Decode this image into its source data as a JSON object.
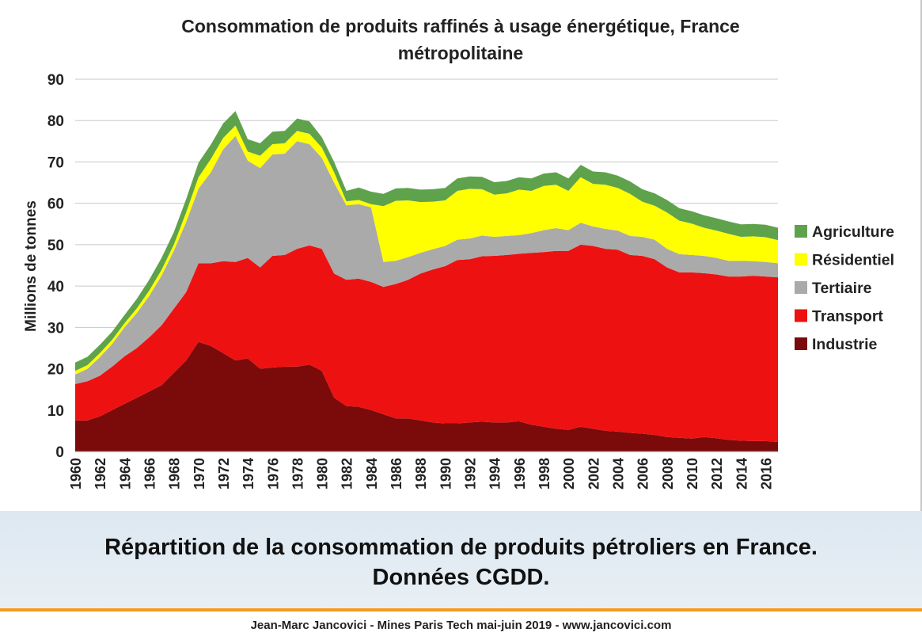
{
  "caption": {
    "line1": "Répartition de la consommation de produits pétroliers en France.",
    "line2": "Données CGDD."
  },
  "footer": {
    "text": "Jean-Marc Jancovici - Mines Paris Tech mai-juin 2019 - www.jancovici.com"
  },
  "chart_data": {
    "type": "area",
    "stacked": true,
    "title": "Consommation de produits raffinés à usage énergétique, France métropolitaine",
    "title_lines": [
      "Consommation de produits raffinés à usage énergétique, France",
      "métropolitaine"
    ],
    "xlabel": "",
    "ylabel": "Millions de tonnes",
    "xlim": [
      1960,
      2017
    ],
    "ylim": [
      0,
      90
    ],
    "yticks": [
      0,
      10,
      20,
      30,
      40,
      50,
      60,
      70,
      80,
      90
    ],
    "xtick_labels": [
      "1960",
      "1962",
      "1964",
      "1966",
      "1968",
      "1970",
      "1972",
      "1974",
      "1976",
      "1978",
      "1980",
      "1982",
      "1984",
      "1986",
      "1988",
      "1990",
      "1992",
      "1994",
      "1996",
      "1998",
      "2000",
      "2002",
      "2004",
      "2006",
      "2008",
      "2010",
      "2012",
      "2014",
      "2016"
    ],
    "grid": "horizontal",
    "legend_position": "right",
    "x": [
      1960,
      1961,
      1962,
      1963,
      1964,
      1965,
      1966,
      1967,
      1968,
      1969,
      1970,
      1971,
      1972,
      1973,
      1974,
      1975,
      1976,
      1977,
      1978,
      1979,
      1980,
      1981,
      1982,
      1983,
      1984,
      1985,
      1986,
      1987,
      1988,
      1989,
      1990,
      1991,
      1992,
      1993,
      1994,
      1995,
      1996,
      1997,
      1998,
      1999,
      2000,
      2001,
      2002,
      2003,
      2004,
      2005,
      2006,
      2007,
      2008,
      2009,
      2010,
      2011,
      2012,
      2013,
      2014,
      2015,
      2016,
      2017
    ],
    "series": [
      {
        "name": "Industrie",
        "color": "#7b0a0a",
        "values": [
          7.5,
          7.5,
          8.5,
          10,
          11.5,
          13,
          14.5,
          16,
          19,
          22,
          26.5,
          25.5,
          23.8,
          22,
          22.5,
          20,
          20.3,
          20.5,
          20.5,
          21,
          19.5,
          13,
          11,
          10.8,
          10,
          9,
          8,
          8,
          7.5,
          7,
          6.8,
          6.8,
          7,
          7.2,
          7,
          7,
          7.3,
          6.5,
          6,
          5.5,
          5.2,
          6,
          5.5,
          5,
          4.8,
          4.5,
          4.3,
          4,
          3.5,
          3.3,
          3.1,
          3.5,
          3.2,
          2.8,
          2.6,
          2.5,
          2.5,
          2.3
        ]
      },
      {
        "name": "Transport",
        "color": "#ee1111",
        "values": [
          8.8,
          9.5,
          9.8,
          10.5,
          11.5,
          12,
          13.1,
          14.5,
          15.5,
          16.5,
          19,
          20,
          22.2,
          23.8,
          24.3,
          24.5,
          27,
          27,
          28.5,
          28.8,
          29.5,
          30,
          30.5,
          31,
          31,
          30.8,
          32.5,
          33.5,
          35.5,
          37,
          38,
          39.5,
          39.5,
          40,
          40.3,
          40.5,
          40.5,
          41.5,
          42.2,
          43,
          43.3,
          44,
          44.2,
          44,
          44,
          43,
          43,
          42.5,
          41,
          40,
          40.2,
          39.6,
          39.6,
          39.5,
          39.7,
          40,
          39.8,
          39.8
        ]
      },
      {
        "name": "Tertiaire",
        "color": "#aaaaaa",
        "values": [
          2.3,
          3,
          4.5,
          5.5,
          7,
          8.5,
          10,
          12,
          14,
          17,
          18,
          22,
          27,
          30.5,
          23.5,
          24,
          24.5,
          24.5,
          26,
          24.5,
          22,
          22,
          18,
          18,
          18,
          6,
          5.6,
          5.5,
          5,
          4.9,
          4.9,
          4.9,
          5,
          5,
          4.6,
          4.6,
          4.5,
          4.8,
          5.3,
          5.5,
          5,
          5.3,
          4.7,
          4.8,
          4.6,
          4.6,
          4.6,
          4.7,
          4.5,
          4.4,
          4.2,
          4.2,
          4,
          3.8,
          3.8,
          3.5,
          3.5,
          3.4
        ]
      },
      {
        "name": "Résidentiel",
        "color": "#ffff00",
        "values": [
          0.9,
          0.9,
          1,
          1,
          1,
          1.1,
          1.3,
          1.4,
          1.5,
          2.3,
          2.8,
          3.2,
          2.8,
          2.5,
          2.2,
          3,
          2.5,
          2.5,
          2.5,
          2.5,
          2.5,
          2.5,
          1,
          1,
          0.8,
          13.5,
          14.5,
          13.7,
          12.3,
          11.5,
          11,
          11.8,
          12,
          11.2,
          10.2,
          10.3,
          11,
          10.2,
          10.7,
          10.5,
          9.5,
          11,
          10.3,
          10.7,
          10.3,
          10.2,
          8.5,
          8.2,
          8.8,
          8.1,
          7.6,
          6.8,
          6.6,
          6.5,
          5.8,
          6,
          6,
          5.6
        ]
      },
      {
        "name": "Agriculture",
        "color": "#5fa24c",
        "values": [
          2,
          2,
          2,
          2,
          2,
          2.3,
          2.6,
          2.9,
          3,
          3.2,
          3.5,
          3.5,
          3.5,
          3.5,
          3,
          3,
          3,
          3,
          3,
          3,
          2.5,
          2.5,
          2.5,
          3,
          3,
          3,
          3,
          3,
          3,
          3,
          3,
          3,
          3,
          3,
          3,
          3,
          3,
          3,
          3,
          3,
          3,
          3,
          3,
          3,
          3,
          3,
          3,
          3,
          3,
          3,
          3,
          3,
          3,
          3,
          3,
          3,
          3,
          3
        ]
      }
    ]
  }
}
